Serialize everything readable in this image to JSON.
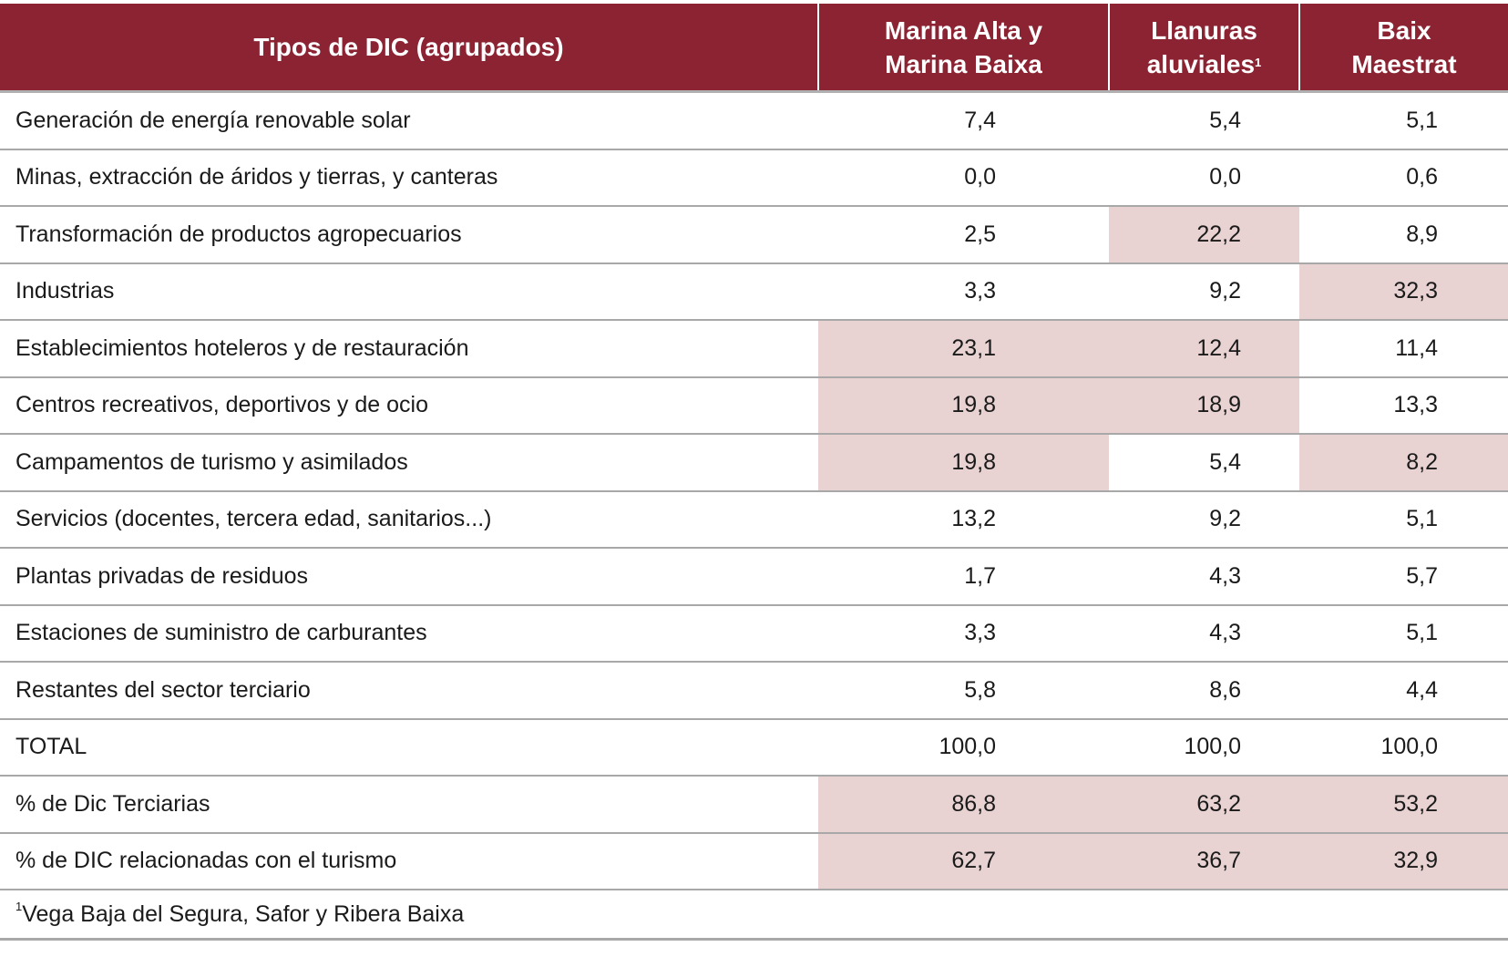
{
  "table": {
    "headers": [
      "Tipos de DIC (agrupados)",
      "Marina Alta y Marina Baixa",
      "Llanuras aluviales",
      "Baix Maestrat"
    ],
    "header_footnote_mark": "1",
    "highlight_color": "#e8d2d2",
    "header_color": "#8b2333",
    "rows": [
      {
        "label": "Generación de energía renovable solar",
        "values": [
          "7,4",
          "5,4",
          "5,1"
        ],
        "highlighted": [
          false,
          false,
          false
        ]
      },
      {
        "label": "Minas, extracción de áridos y tierras, y canteras",
        "values": [
          "0,0",
          "0,0",
          "0,6"
        ],
        "highlighted": [
          false,
          false,
          false
        ]
      },
      {
        "label": "Transformación de productos agropecuarios",
        "values": [
          "2,5",
          "22,2",
          "8,9"
        ],
        "highlighted": [
          false,
          true,
          false
        ]
      },
      {
        "label": "Industrias",
        "values": [
          "3,3",
          "9,2",
          "32,3"
        ],
        "highlighted": [
          false,
          false,
          true
        ]
      },
      {
        "label": "Establecimientos hoteleros y de restauración",
        "values": [
          "23,1",
          "12,4",
          "11,4"
        ],
        "highlighted": [
          true,
          true,
          false
        ]
      },
      {
        "label": "Centros recreativos, deportivos y de ocio",
        "values": [
          "19,8",
          "18,9",
          "13,3"
        ],
        "highlighted": [
          true,
          true,
          false
        ]
      },
      {
        "label": "Campamentos de turismo y asimilados",
        "values": [
          "19,8",
          "5,4",
          "8,2"
        ],
        "highlighted": [
          true,
          false,
          true
        ]
      },
      {
        "label": "Servicios (docentes, tercera edad, sanitarios...)",
        "values": [
          "13,2",
          "9,2",
          "5,1"
        ],
        "highlighted": [
          false,
          false,
          false
        ]
      },
      {
        "label": "Plantas privadas de residuos",
        "values": [
          "1,7",
          "4,3",
          "5,7"
        ],
        "highlighted": [
          false,
          false,
          false
        ]
      },
      {
        "label": "Estaciones de suministro de carburantes",
        "values": [
          "3,3",
          "4,3",
          "5,1"
        ],
        "highlighted": [
          false,
          false,
          false
        ]
      },
      {
        "label": "Restantes del sector terciario",
        "values": [
          "5,8",
          "8,6",
          "4,4"
        ],
        "highlighted": [
          false,
          false,
          false
        ]
      },
      {
        "label": "TOTAL",
        "values": [
          "100,0",
          "100,0",
          "100,0"
        ],
        "highlighted": [
          false,
          false,
          false
        ]
      },
      {
        "label": "% de Dic Terciarias",
        "values": [
          "86,8",
          "63,2",
          "53,2"
        ],
        "highlighted": [
          true,
          true,
          true
        ]
      },
      {
        "label": "% de DIC relacionadas con el turismo",
        "values": [
          "62,7",
          "36,7",
          "32,9"
        ],
        "highlighted": [
          true,
          true,
          true
        ]
      }
    ],
    "footnote": {
      "mark": "1",
      "text": "Vega Baja del Segura, Safor y Ribera Baixa"
    }
  }
}
